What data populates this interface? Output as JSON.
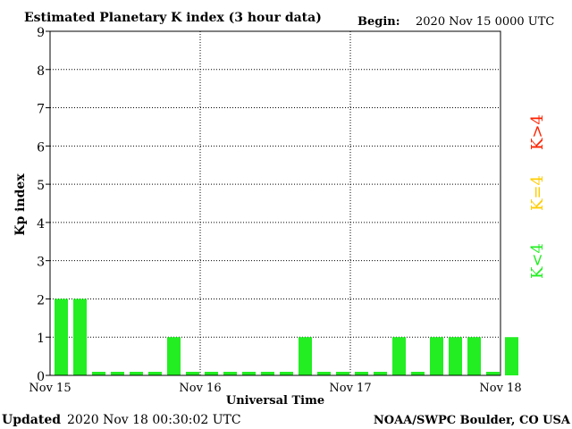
{
  "header": {
    "title": "Estimated Planetary K index (3 hour data)",
    "begin_label": "Begin:",
    "begin_value": "2020 Nov 15 0000 UTC"
  },
  "footer": {
    "updated_label": "Updated",
    "updated_value": "2020 Nov 18 00:30:02 UTC",
    "credit": "NOAA/SWPC Boulder, CO USA"
  },
  "legend": {
    "high": "K>4",
    "equal": "K=4",
    "low": "K<4"
  },
  "colors": {
    "low": "#22ee22",
    "equal": "#ffcc00",
    "high": "#ff2200",
    "axis": "#000000",
    "grid": "#000000"
  },
  "chart_data": {
    "type": "bar",
    "title": "Estimated Planetary K index (3 hour data)",
    "xlabel": "Universal Time",
    "ylabel": "Kp index",
    "ylim": [
      0,
      9
    ],
    "yticks": [
      "0",
      "1",
      "2",
      "3",
      "4",
      "5",
      "6",
      "7",
      "8",
      "9"
    ],
    "xticks": [
      "Nov 15",
      "Nov 16",
      "Nov 17",
      "Nov 18"
    ],
    "interval_hours": 3,
    "grid": true,
    "values": [
      2,
      2,
      0,
      0,
      0,
      0,
      1,
      0,
      0,
      0,
      0,
      0,
      0,
      1,
      0,
      0,
      0,
      0,
      1,
      0,
      1,
      1,
      1,
      0,
      1
    ]
  }
}
